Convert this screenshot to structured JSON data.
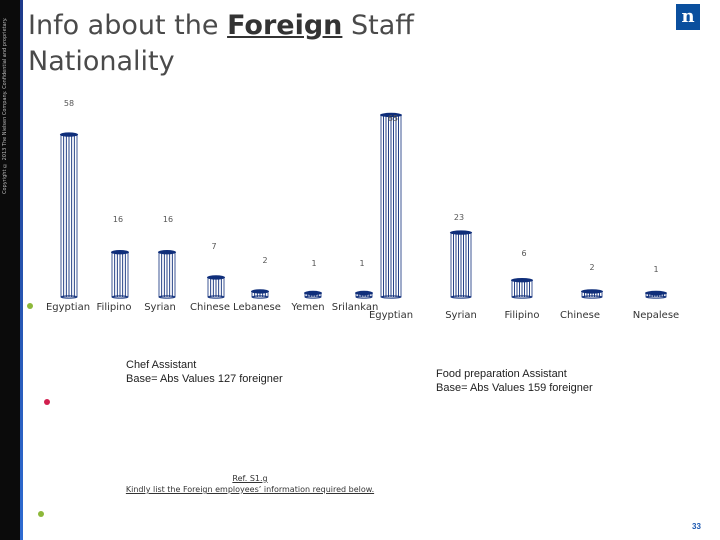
{
  "copyright": "Copyright © 2013 The Nielsen Company. Confidential and proprietary.",
  "title_line1_pre": "Info about the ",
  "title_bold": "Foreign",
  "title_line1_post": " Staff",
  "title_line2": "Nationality",
  "logo": "n",
  "colors": {
    "accent_top": "#1e3a8a",
    "accent_bottom": "#2e6bd1",
    "bar_stroke": "#0f2e7a",
    "dots": [
      "#8db83a",
      "#d11f4e",
      "#8db83a"
    ]
  },
  "chart_data": [
    {
      "type": "bar",
      "categories": [
        "Egyptian",
        "Filipino",
        "Syrian",
        "Chinese",
        "Lebanese",
        "Yemen",
        "Srilankan"
      ],
      "values": [
        58,
        16,
        16,
        7,
        2,
        1,
        1
      ],
      "data_labels": [
        "58",
        "16",
        "16",
        "7",
        "2",
        "1",
        "1"
      ],
      "note_line1": "Chef Assistant",
      "note_line2": "Base= Abs Values 127 foreigner"
    },
    {
      "type": "bar",
      "categories": [
        "Egyptian",
        "Syrian",
        "Filipino",
        "Chinese",
        "Nepalese"
      ],
      "values": [
        65,
        23,
        6,
        2,
        1
      ],
      "data_labels": [
        "65",
        "23",
        "6",
        "2",
        "1"
      ],
      "note_line1": "Food preparation Assistant",
      "note_line2": "Base= Abs Values 159 foreigner"
    }
  ],
  "ref_line1": "Ref. S1.g",
  "ref_line2": "Kindly list the Foreign employees’ information required below.",
  "page_number": "33"
}
